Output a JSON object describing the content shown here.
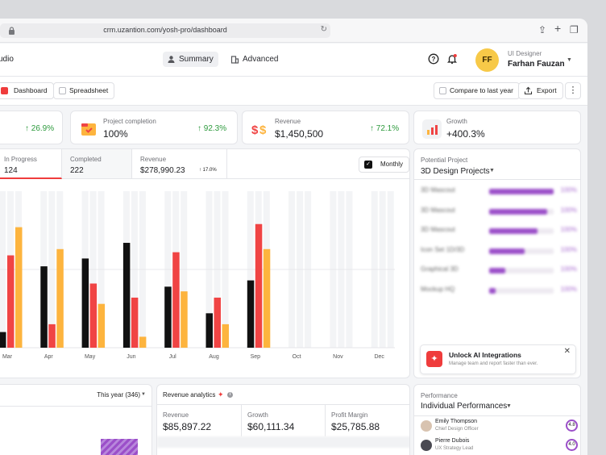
{
  "browser": {
    "url": "crm.uzantion.com/yosh-pro/dashboard"
  },
  "header": {
    "brand": "udio",
    "tabs": [
      {
        "label": "Summary",
        "active": true
      },
      {
        "label": "Advanced",
        "active": false
      }
    ],
    "user": {
      "initials": "FF",
      "role": "UI Designer",
      "name": "Farhan Fauzan"
    }
  },
  "toolbar": {
    "dashboard_label": "Dashboard",
    "spreadsheet_label": "Spreadsheet",
    "compare_label": "Compare to last year",
    "export_label": "Export"
  },
  "stats": [
    {
      "label": "",
      "value": "",
      "change": "26.9%"
    },
    {
      "label": "Project completion",
      "value": "100%",
      "change": "92.3%"
    },
    {
      "label": "Revenue",
      "value": "$1,450,500",
      "change": "72.1%"
    },
    {
      "label": "Growth",
      "value": "+400.3%",
      "change": ""
    }
  ],
  "chart_tabs": [
    {
      "label": "In Progress",
      "value": "124"
    },
    {
      "label": "Completed",
      "value": "222"
    },
    {
      "label": "Revenue",
      "value": "$278,990.23",
      "change": "17.0%"
    }
  ],
  "monthly_label": "Monthly",
  "chart_data": {
    "type": "bar",
    "categories": [
      "Mar",
      "Apr",
      "May",
      "Jun",
      "Jul",
      "Aug",
      "Sep",
      "Oct",
      "Nov",
      "Dec"
    ],
    "series": [
      {
        "color": "#111111",
        "values": [
          10,
          52,
          57,
          67,
          39,
          22,
          43,
          0,
          0,
          0
        ]
      },
      {
        "color": "#f04444",
        "values": [
          59,
          15,
          41,
          32,
          61,
          32,
          79,
          0,
          0,
          0
        ]
      },
      {
        "color": "#fdb43e",
        "values": [
          77,
          63,
          28,
          7,
          36,
          15,
          63,
          0,
          0,
          0
        ]
      }
    ],
    "ylim": [
      0,
      100
    ],
    "grid": true
  },
  "projects": {
    "label": "Potential Project",
    "title": "3D Design Projects",
    "items": [
      {
        "name": "3D Mascout",
        "percent": "100%",
        "fill": 1.0
      },
      {
        "name": "3D Mascout",
        "percent": "100%",
        "fill": 0.9
      },
      {
        "name": "3D Mascout",
        "percent": "100%",
        "fill": 0.75
      },
      {
        "name": "Icon Set 1D/3D",
        "percent": "100%",
        "fill": 0.55
      },
      {
        "name": "Graphical 3D",
        "percent": "100%",
        "fill": 0.25
      },
      {
        "name": "Mockup HQ",
        "percent": "100%",
        "fill": 0.1
      }
    ],
    "ai_title": "Unlock AI Integrations",
    "ai_subtitle": "Manage team and report faster than ever."
  },
  "bottom": {
    "year_label": "This year (346)",
    "revenue_analytics": {
      "title": "Revenue analytics",
      "cells": [
        {
          "label": "Revenue",
          "value": "$85,897.22"
        },
        {
          "label": "Growth",
          "value": "$60,111.34"
        },
        {
          "label": "Profit Margin",
          "value": "$25,785.88"
        }
      ]
    },
    "performance": {
      "label": "Performance",
      "title": "Individual Performances",
      "people": [
        {
          "name": "Emily Thompson",
          "title": "Chief Design Officer",
          "score": "4.8"
        },
        {
          "name": "Pierre Dubois",
          "title": "UX Strategy Lead",
          "score": "4.0"
        }
      ]
    }
  }
}
